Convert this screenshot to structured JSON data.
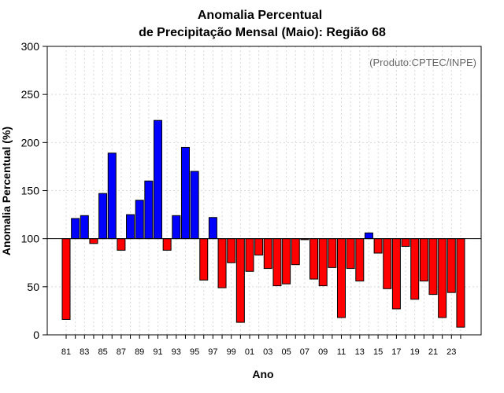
{
  "chart_data": {
    "type": "bar",
    "title": "Anomalia Percentual",
    "subtitle": "de Precipitação Mensal (Maio): Região 68",
    "xlabel": "Ano",
    "ylabel": "Anomalia Percentual (%)",
    "annotation": "(Produto:CPTEC/INPE)",
    "ylim": [
      0,
      300
    ],
    "yticks": [
      0,
      50,
      100,
      150,
      200,
      250,
      300
    ],
    "baseline": 100,
    "grid": true,
    "above_color": "#0000ff",
    "below_color": "#ff0000",
    "categories": [
      "81",
      "82",
      "83",
      "84",
      "85",
      "86",
      "87",
      "88",
      "89",
      "90",
      "91",
      "92",
      "93",
      "94",
      "95",
      "96",
      "97",
      "98",
      "99",
      "00",
      "01",
      "02",
      "03",
      "04",
      "05",
      "06",
      "07",
      "08",
      "09",
      "10",
      "11",
      "12",
      "13",
      "14",
      "15",
      "16",
      "17",
      "18",
      "19",
      "20",
      "21",
      "22",
      "23",
      "24"
    ],
    "xtick_labels": [
      "81",
      "83",
      "85",
      "87",
      "89",
      "91",
      "93",
      "95",
      "97",
      "99",
      "01",
      "03",
      "05",
      "07",
      "09",
      "11",
      "13",
      "15",
      "17",
      "19",
      "21",
      "23"
    ],
    "values": [
      16,
      121,
      124,
      95,
      147,
      189,
      88,
      125,
      140,
      160,
      223,
      88,
      124,
      195,
      170,
      57,
      122,
      49,
      75,
      13,
      66,
      83,
      69,
      51,
      53,
      73,
      99,
      58,
      51,
      70,
      18,
      69,
      56,
      106,
      85,
      48,
      27,
      92,
      37,
      56,
      42,
      18,
      44,
      8
    ]
  }
}
